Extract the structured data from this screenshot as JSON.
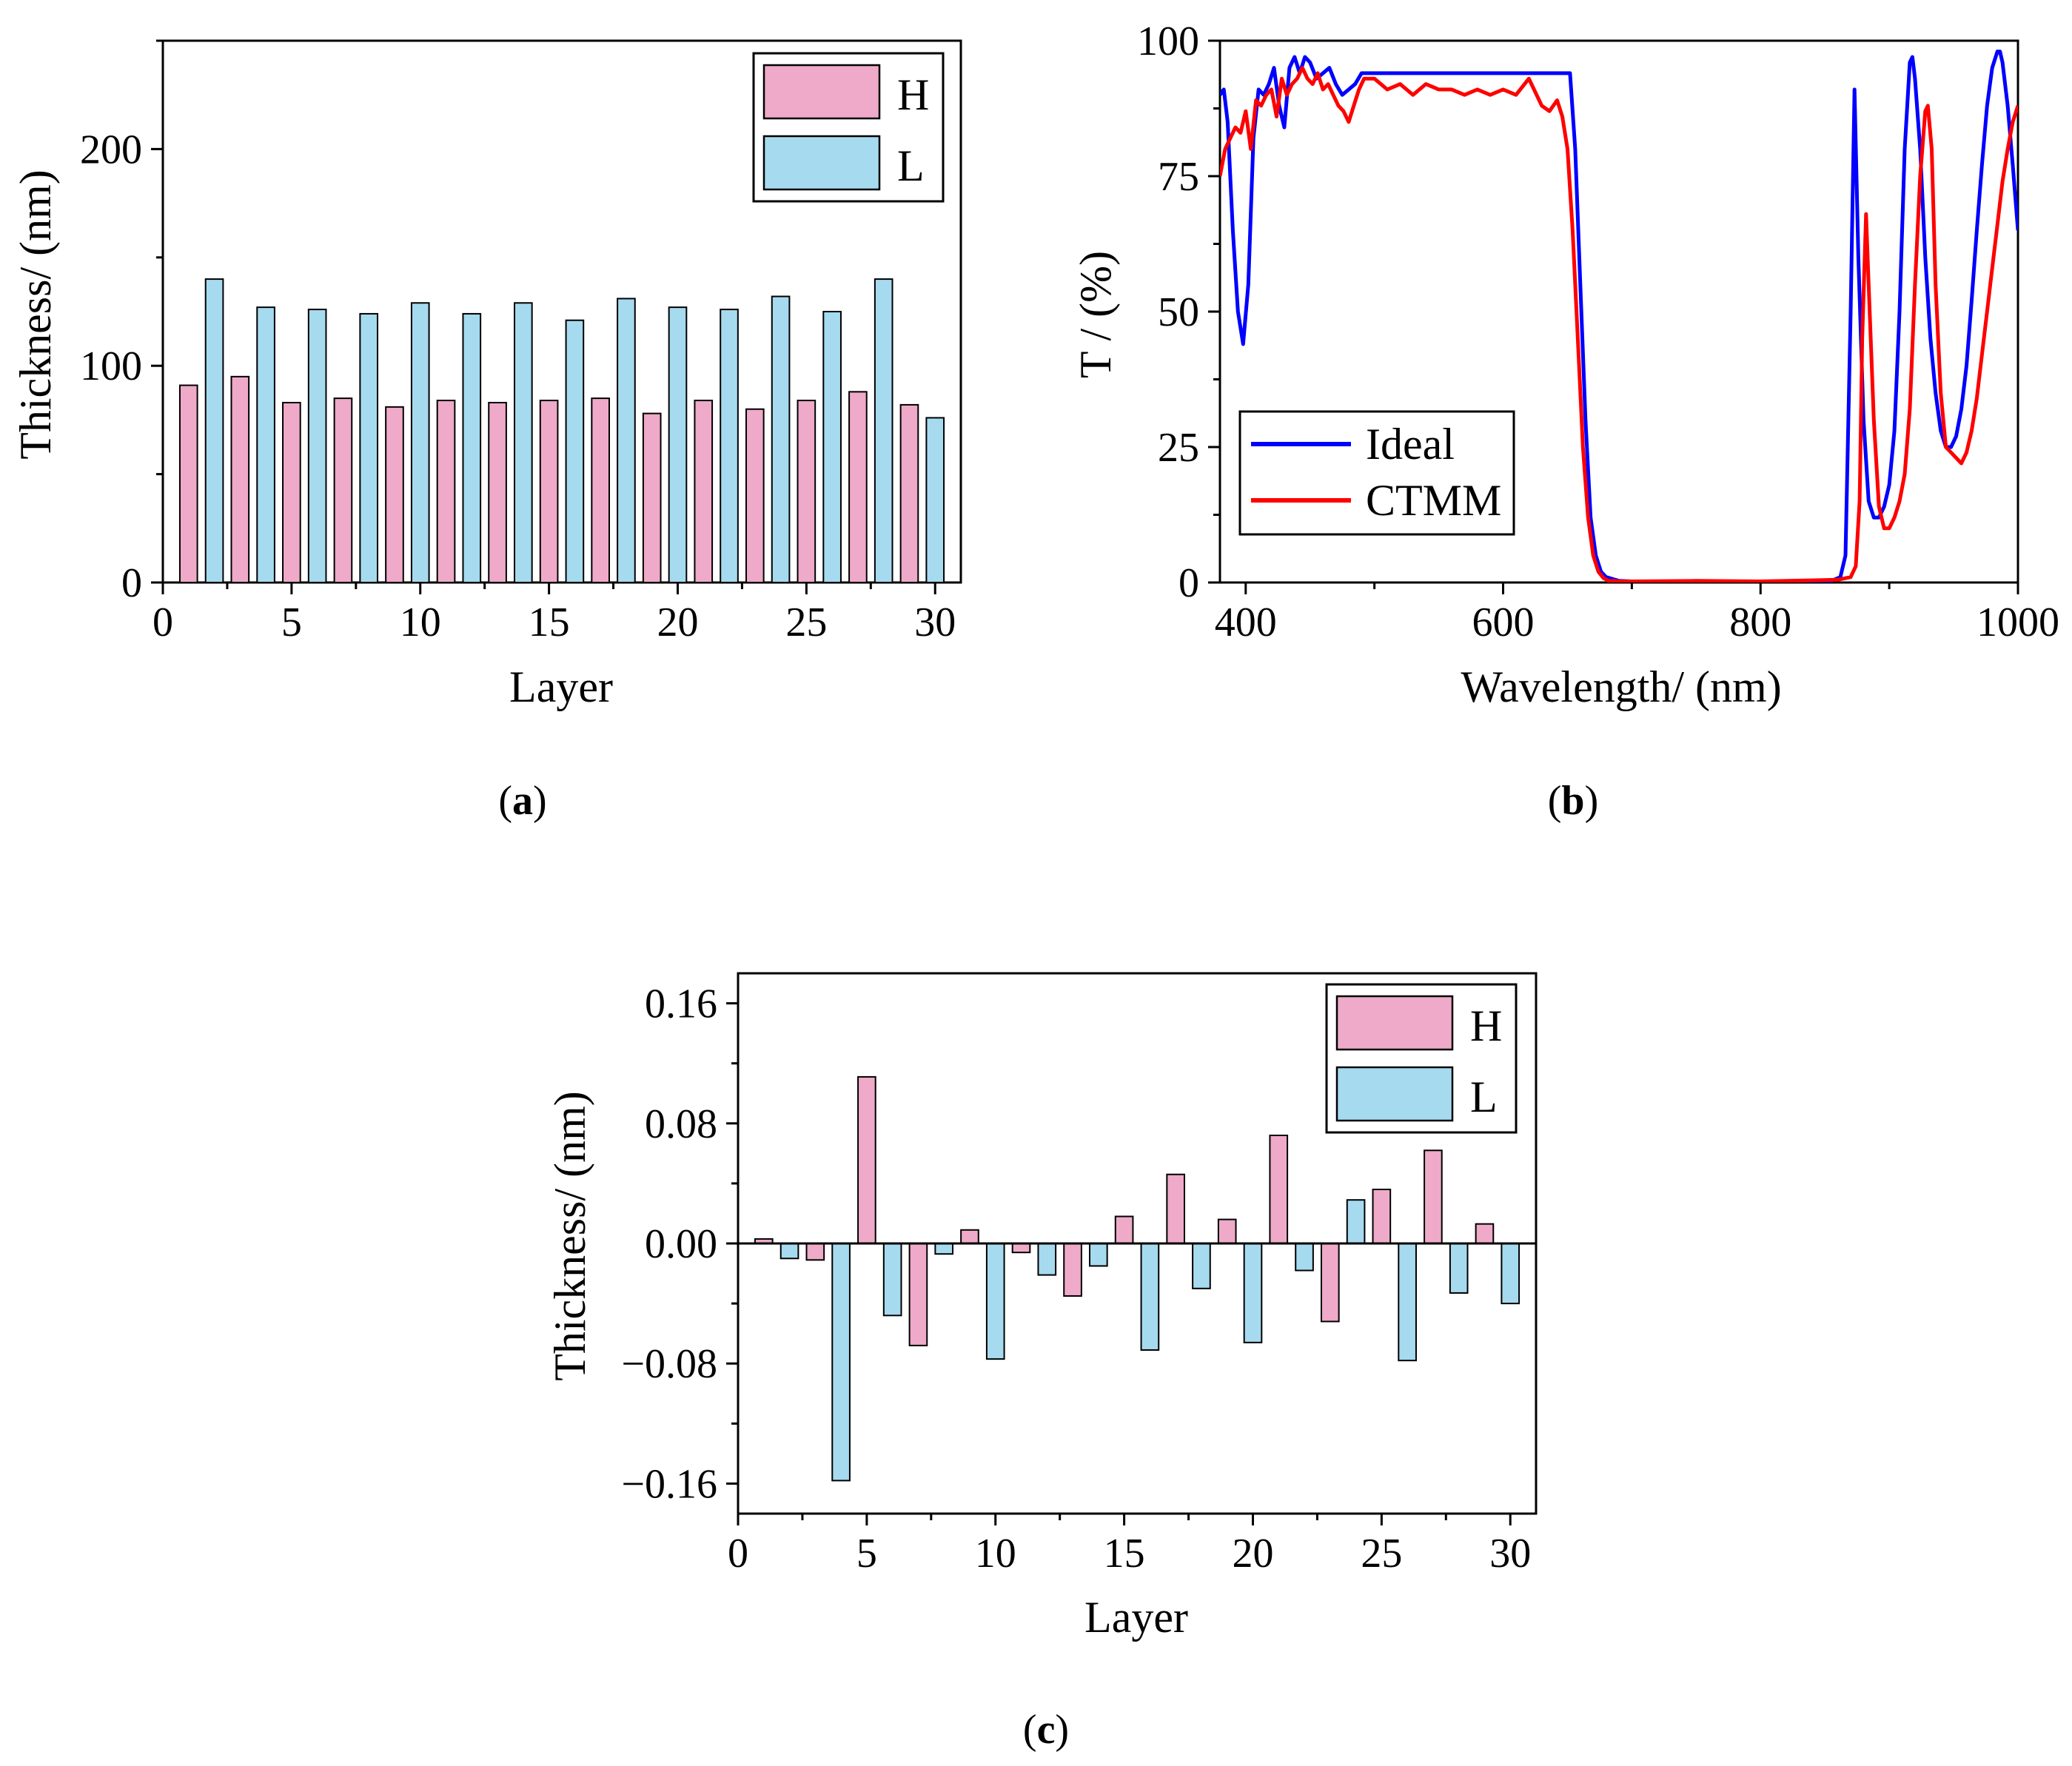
{
  "chart_data": [
    {
      "id": "a",
      "type": "bar",
      "panel_label": "a",
      "xlabel": "Layer",
      "ylabel": "Thickness/ (nm)",
      "xlim": [
        0,
        31
      ],
      "ylim": [
        0,
        250
      ],
      "xticks": [
        0,
        5,
        10,
        15,
        20,
        25,
        30
      ],
      "yticks": [
        0,
        100,
        200
      ],
      "grid": false,
      "legend_position": "top-right",
      "series": [
        {
          "name": "H",
          "color": "#eeaac8",
          "x": [
            1,
            3,
            5,
            7,
            9,
            11,
            13,
            15,
            17,
            19,
            21,
            23,
            25,
            27,
            29
          ],
          "values": [
            91,
            95,
            83,
            85,
            81,
            84,
            83,
            84,
            85,
            78,
            84,
            80,
            84,
            88,
            82
          ]
        },
        {
          "name": "L",
          "color": "#a6daef",
          "x": [
            2,
            4,
            6,
            8,
            10,
            12,
            14,
            16,
            18,
            20,
            22,
            24,
            26,
            28,
            30
          ],
          "values": [
            140,
            127,
            126,
            124,
            129,
            124,
            129,
            121,
            131,
            127,
            126,
            132,
            125,
            140,
            76
          ]
        }
      ]
    },
    {
      "id": "b",
      "type": "line",
      "panel_label": "b",
      "xlabel": "Wavelength/ (nm)",
      "ylabel": "T / (%)",
      "xlim": [
        380,
        1000
      ],
      "ylim": [
        0,
        100
      ],
      "xticks": [
        400,
        600,
        800,
        1000
      ],
      "yticks": [
        0,
        25,
        50,
        75,
        100
      ],
      "grid": false,
      "legend_position": "bottom-left",
      "series": [
        {
          "name": "Ideal",
          "color": "#0000ff",
          "x": [
            380,
            383,
            386,
            390,
            394,
            398,
            402,
            406,
            410,
            414,
            418,
            422,
            426,
            430,
            434,
            438,
            442,
            446,
            450,
            455,
            460,
            465,
            470,
            475,
            480,
            485,
            490,
            500,
            550,
            600,
            640,
            648,
            652,
            656,
            660,
            664,
            668,
            672,
            676,
            680,
            690,
            700,
            750,
            800,
            840,
            855,
            862,
            866,
            870,
            873,
            876,
            880,
            884,
            888,
            892,
            896,
            900,
            904,
            908,
            912,
            916,
            918,
            920,
            924,
            928,
            932,
            936,
            940,
            944,
            948,
            952,
            956,
            960,
            964,
            968,
            972,
            976,
            980,
            984,
            986,
            988,
            992,
            996,
            1000
          ],
          "y": [
            90,
            91,
            85,
            65,
            50,
            44,
            55,
            82,
            91,
            90,
            92,
            95,
            88,
            84,
            95,
            97,
            94,
            97,
            96,
            93,
            94,
            95,
            92,
            90,
            91,
            92,
            94,
            94,
            94,
            94,
            94,
            94,
            94,
            80,
            55,
            30,
            12,
            5,
            2,
            1,
            0.3,
            0.2,
            0.2,
            0.2,
            0.2,
            0.3,
            1,
            5,
            50,
            91,
            60,
            30,
            15,
            12,
            12,
            14,
            18,
            28,
            50,
            80,
            96,
            97,
            93,
            80,
            60,
            45,
            35,
            28,
            25,
            25,
            27,
            32,
            40,
            52,
            65,
            77,
            88,
            95,
            98,
            98,
            96,
            88,
            77,
            65
          ]
        },
        {
          "name": "CTMM",
          "color": "#ff0000",
          "x": [
            380,
            384,
            388,
            392,
            396,
            400,
            404,
            408,
            412,
            416,
            420,
            424,
            428,
            432,
            436,
            440,
            444,
            448,
            452,
            456,
            460,
            464,
            468,
            472,
            476,
            480,
            484,
            488,
            492,
            500,
            510,
            520,
            530,
            540,
            550,
            560,
            570,
            580,
            590,
            600,
            610,
            620,
            630,
            636,
            642,
            646,
            650,
            654,
            658,
            662,
            666,
            670,
            674,
            678,
            682,
            686,
            690,
            700,
            750,
            800,
            840,
            860,
            870,
            874,
            877,
            879,
            882,
            884,
            888,
            892,
            896,
            900,
            904,
            908,
            912,
            916,
            920,
            924,
            928,
            930,
            933,
            936,
            940,
            944,
            948,
            952,
            956,
            960,
            964,
            968,
            972,
            976,
            980,
            984,
            988,
            992,
            996,
            1000
          ],
          "y": [
            75,
            80,
            82,
            84,
            83,
            87,
            80,
            89,
            88,
            90,
            91,
            86,
            93,
            90,
            92,
            93,
            95,
            93,
            92,
            94,
            91,
            92,
            90,
            88,
            87,
            85,
            88,
            91,
            93,
            93,
            91,
            92,
            90,
            92,
            91,
            91,
            90,
            91,
            90,
            91,
            90,
            93,
            88,
            87,
            89,
            86,
            80,
            65,
            45,
            25,
            12,
            5,
            2,
            0.8,
            0.3,
            0.3,
            0.2,
            0.2,
            0.3,
            0.2,
            0.4,
            0.5,
            1,
            3,
            15,
            45,
            68,
            55,
            30,
            14,
            10,
            10,
            12,
            15,
            20,
            32,
            55,
            75,
            87,
            88,
            80,
            55,
            35,
            25,
            24,
            23,
            22,
            24,
            28,
            34,
            42,
            50,
            58,
            66,
            74,
            80,
            85,
            88
          ]
        }
      ]
    },
    {
      "id": "c",
      "type": "bar",
      "panel_label": "c",
      "xlabel": "Layer",
      "ylabel": "Thickness/ (nm)",
      "xlim": [
        0,
        31
      ],
      "ylim": [
        -0.18,
        0.18
      ],
      "xticks": [
        0,
        5,
        10,
        15,
        20,
        25,
        30
      ],
      "yticks": [
        -0.16,
        -0.08,
        0.0,
        0.08,
        0.16
      ],
      "ytick_labels": [
        "−0.16",
        "−0.08",
        "0.00",
        "0.08",
        "0.16"
      ],
      "grid": false,
      "legend_position": "top-right",
      "series": [
        {
          "name": "H",
          "color": "#eeaac8",
          "x": [
            1,
            3,
            5,
            7,
            9,
            11,
            13,
            15,
            17,
            19,
            21,
            23,
            25,
            27,
            29
          ],
          "values": [
            0.003,
            -0.011,
            0.111,
            -0.068,
            0.009,
            -0.006,
            -0.035,
            0.018,
            0.046,
            0.016,
            0.072,
            -0.052,
            0.036,
            0.062,
            0.013
          ]
        },
        {
          "name": "L",
          "color": "#a6daef",
          "x": [
            2,
            4,
            6,
            8,
            10,
            12,
            14,
            16,
            18,
            20,
            22,
            24,
            26,
            28,
            30
          ],
          "values": [
            -0.01,
            -0.158,
            -0.048,
            -0.007,
            -0.077,
            -0.021,
            -0.015,
            -0.071,
            -0.03,
            -0.066,
            -0.018,
            0.029,
            -0.078,
            -0.033,
            -0.04
          ]
        }
      ]
    }
  ]
}
